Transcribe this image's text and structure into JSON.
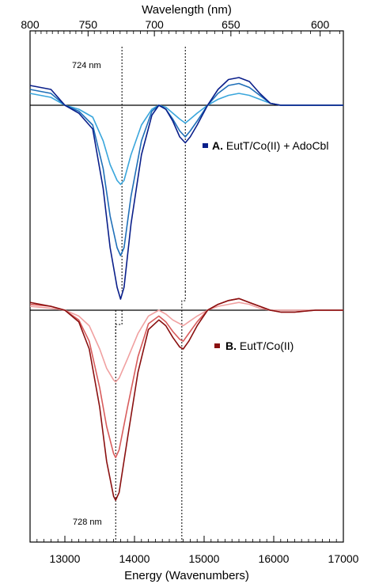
{
  "chart_data": {
    "type": "line",
    "xlabel": "Energy (Wavenumbers)",
    "x2label": "Wavelength (nm)",
    "xlim": [
      12500,
      17000
    ],
    "x_ticks": [
      13000,
      14000,
      15000,
      16000,
      17000
    ],
    "x2_ticks": [
      800,
      750,
      700,
      650,
      600
    ],
    "annotations": {
      "top_peak": "724 nm",
      "bottom_peak": "728 nm"
    },
    "legend": [
      {
        "prefix": "A.",
        "text": " EutT/Co(II) + AdoCbl",
        "color": "#0a1f8a"
      },
      {
        "prefix": "B.",
        "text": " EutT/Co(II)",
        "color": "#8a1010"
      }
    ],
    "colors": {
      "A_dark": "#0a1f8a",
      "A_mid": "#1f6fb8",
      "A_light": "#3aa6dc",
      "B_dark": "#8a1010",
      "B_mid": "#d85c5c",
      "B_light": "#f0a0a0"
    },
    "panels": [
      {
        "name": "A",
        "guides": [
          13820,
          14730
        ],
        "series": [
          {
            "key": "A_dark",
            "color": "#0a1f8a",
            "x": [
              12500,
              12800,
              13000,
              13200,
              13400,
              13550,
              13650,
              13750,
              13800,
              13850,
              13950,
              14100,
              14250,
              14350,
              14450,
              14550,
              14650,
              14730,
              14800,
              14900,
              15050,
              15200,
              15350,
              15500,
              15650,
              15800,
              15950,
              16100,
              16300,
              16600,
              17000
            ],
            "y": [
              0.1,
              0.08,
              0.0,
              -0.04,
              -0.12,
              -0.42,
              -0.72,
              -0.92,
              -0.98,
              -0.92,
              -0.6,
              -0.25,
              -0.05,
              0.0,
              -0.02,
              -0.08,
              -0.16,
              -0.19,
              -0.16,
              -0.1,
              0.0,
              0.08,
              0.13,
              0.14,
              0.12,
              0.06,
              0.01,
              0.0,
              0.0,
              0.0,
              0.0
            ]
          },
          {
            "key": "A_mid",
            "color": "#1f6fb8",
            "x": [
              12500,
              12800,
              13000,
              13200,
              13400,
              13550,
              13650,
              13750,
              13800,
              13850,
              13950,
              14100,
              14250,
              14350,
              14450,
              14550,
              14650,
              14730,
              14800,
              14900,
              15050,
              15200,
              15350,
              15500,
              15650,
              15800,
              15950,
              16100,
              16300,
              16600,
              17000
            ],
            "y": [
              0.08,
              0.06,
              0.0,
              -0.03,
              -0.1,
              -0.32,
              -0.56,
              -0.72,
              -0.76,
              -0.72,
              -0.46,
              -0.18,
              -0.03,
              0.0,
              -0.02,
              -0.07,
              -0.13,
              -0.16,
              -0.13,
              -0.08,
              0.0,
              0.06,
              0.1,
              0.11,
              0.09,
              0.05,
              0.01,
              0.0,
              0.0,
              0.0,
              0.0
            ]
          },
          {
            "key": "A_light",
            "color": "#3aa6dc",
            "x": [
              12500,
              12800,
              13000,
              13200,
              13400,
              13550,
              13650,
              13750,
              13800,
              13850,
              13950,
              14100,
              14250,
              14350,
              14450,
              14550,
              14650,
              14730,
              14800,
              14900,
              15050,
              15200,
              15350,
              15500,
              15650,
              15800,
              15950,
              16100,
              16300,
              16600,
              17000
            ],
            "y": [
              0.06,
              0.04,
              0.0,
              -0.02,
              -0.06,
              -0.18,
              -0.3,
              -0.38,
              -0.4,
              -0.38,
              -0.25,
              -0.1,
              -0.02,
              0.0,
              -0.01,
              -0.04,
              -0.07,
              -0.09,
              -0.07,
              -0.04,
              0.0,
              0.03,
              0.05,
              0.06,
              0.05,
              0.03,
              0.01,
              0.0,
              0.0,
              0.0,
              0.0
            ]
          }
        ]
      },
      {
        "name": "B",
        "guides": [
          13730,
          14680
        ],
        "series": [
          {
            "key": "B_dark",
            "color": "#8a1010",
            "x": [
              12500,
              12800,
              13000,
              13200,
              13350,
              13500,
              13600,
              13700,
              13730,
              13780,
              13900,
              14050,
              14200,
              14350,
              14450,
              14550,
              14650,
              14700,
              14780,
              14900,
              15050,
              15200,
              15350,
              15500,
              15650,
              15800,
              15950,
              16100,
              16300,
              16600,
              17000
            ],
            "y": [
              0.04,
              0.02,
              0.0,
              -0.06,
              -0.2,
              -0.5,
              -0.78,
              -0.96,
              -0.98,
              -0.94,
              -0.66,
              -0.32,
              -0.1,
              -0.05,
              -0.08,
              -0.14,
              -0.19,
              -0.2,
              -0.16,
              -0.08,
              0.0,
              0.03,
              0.05,
              0.06,
              0.04,
              0.02,
              0.0,
              -0.01,
              -0.01,
              0.0,
              0.0
            ]
          },
          {
            "key": "B_mid",
            "color": "#d85c5c",
            "x": [
              12500,
              12800,
              13000,
              13200,
              13350,
              13500,
              13600,
              13700,
              13730,
              13780,
              13900,
              14050,
              14200,
              14350,
              14450,
              14550,
              14650,
              14700,
              14780,
              14900,
              15050,
              15200,
              15350,
              15500,
              15650,
              15800,
              15950,
              16100,
              16300,
              16600,
              17000
            ],
            "y": [
              0.03,
              0.02,
              0.0,
              -0.05,
              -0.16,
              -0.4,
              -0.6,
              -0.74,
              -0.76,
              -0.72,
              -0.5,
              -0.24,
              -0.07,
              -0.03,
              -0.06,
              -0.11,
              -0.15,
              -0.16,
              -0.12,
              -0.06,
              0.0,
              0.03,
              0.05,
              0.06,
              0.04,
              0.02,
              0.0,
              -0.01,
              -0.01,
              0.0,
              0.0
            ]
          },
          {
            "key": "B_light",
            "color": "#f0a0a0",
            "x": [
              12500,
              12800,
              13000,
              13200,
              13350,
              13500,
              13600,
              13700,
              13730,
              13780,
              13900,
              14050,
              14200,
              14350,
              14450,
              14550,
              14650,
              14700,
              14780,
              14900,
              15050,
              15200,
              15350,
              15500,
              15650,
              15800,
              15950,
              16100,
              16300,
              16600,
              17000
            ],
            "y": [
              0.02,
              0.01,
              0.0,
              -0.03,
              -0.08,
              -0.2,
              -0.3,
              -0.36,
              -0.37,
              -0.35,
              -0.25,
              -0.12,
              -0.03,
              0.0,
              -0.02,
              -0.05,
              -0.07,
              -0.08,
              -0.06,
              -0.03,
              0.0,
              0.02,
              0.03,
              0.04,
              0.03,
              0.01,
              0.0,
              0.0,
              0.0,
              0.0,
              0.0
            ]
          }
        ]
      }
    ]
  }
}
